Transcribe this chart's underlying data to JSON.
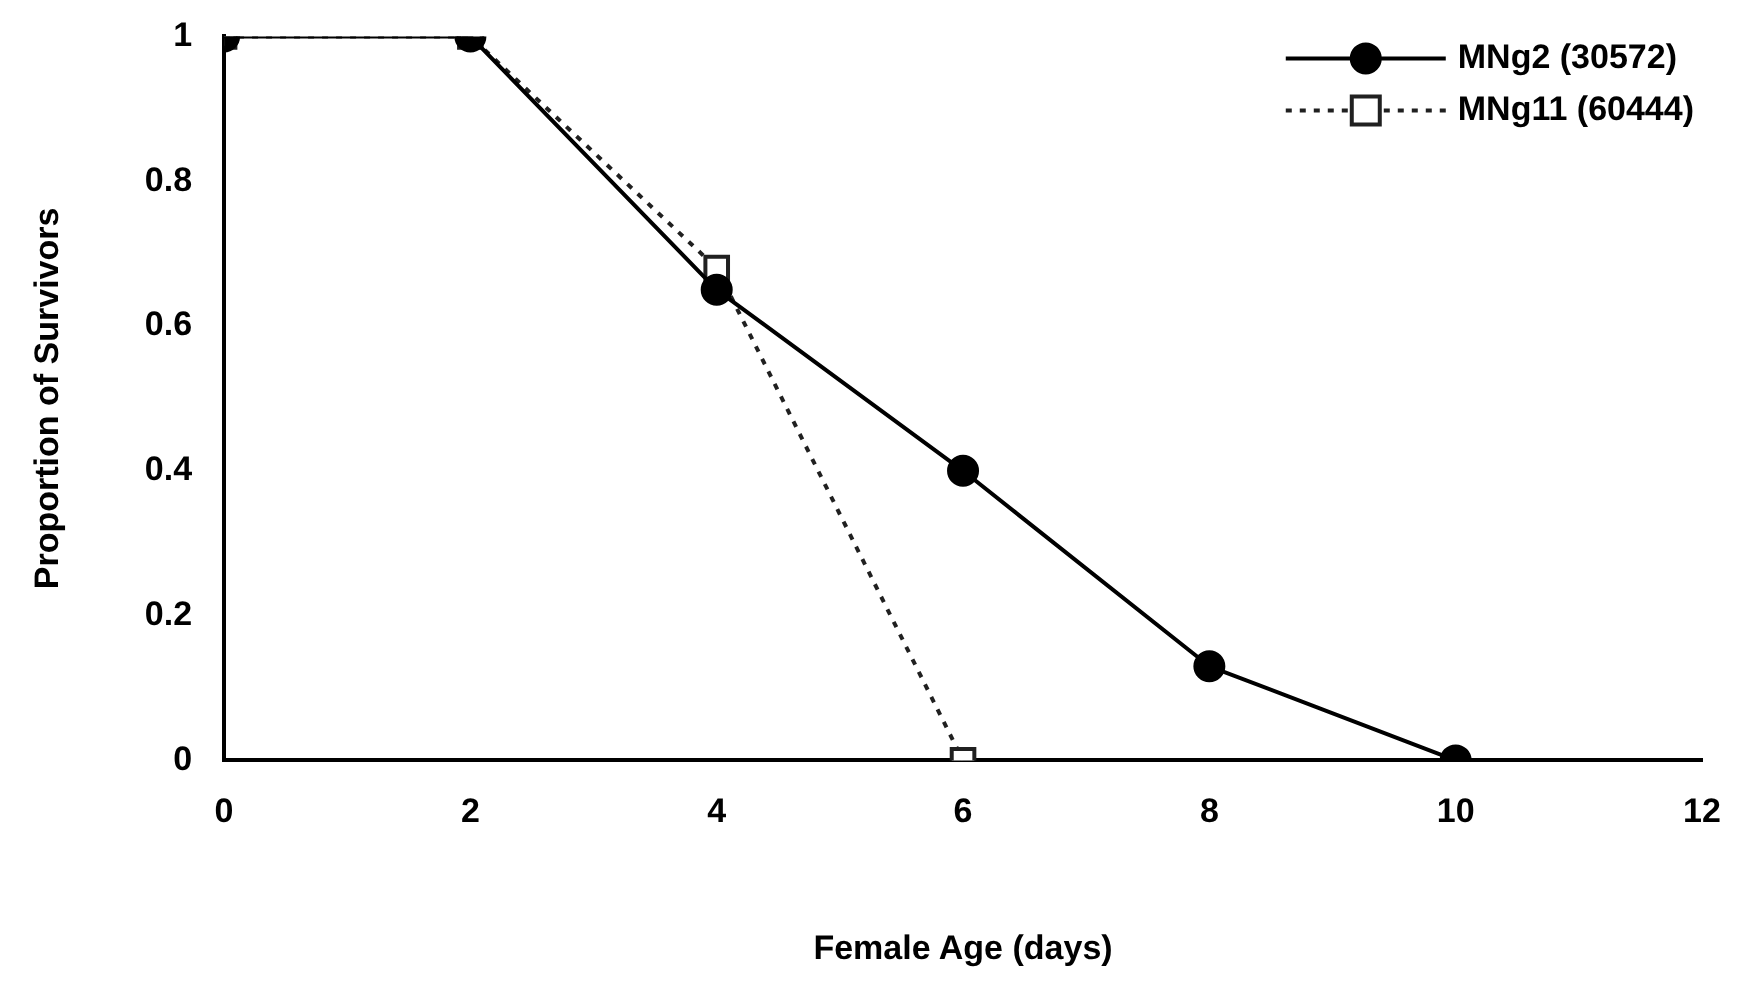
{
  "chart_data": {
    "type": "line",
    "xlabel": "Female Age (days)",
    "ylabel": "Proportion of Survivors",
    "x": [
      0,
      2,
      4,
      6,
      8,
      10
    ],
    "xlim": [
      0,
      12
    ],
    "xticks": [
      0,
      2,
      4,
      6,
      8,
      10,
      12
    ],
    "ylim": [
      0,
      1
    ],
    "yticks": [
      0,
      0.2,
      0.4,
      0.6,
      0.8,
      1
    ],
    "grid": false,
    "legend": "top right",
    "series": [
      {
        "name": "MNg2 (30572)",
        "color": "#000000",
        "marker": "circle",
        "line_style": "solid",
        "values": [
          1,
          1,
          0.65,
          0.4,
          0.13,
          0
        ]
      },
      {
        "name": "MNg11 (60444)",
        "color": "#202020",
        "marker": "square",
        "line_style": "dotted",
        "x": [
          0,
          2,
          4,
          6
        ],
        "values": [
          1,
          1,
          0.68,
          0
        ]
      }
    ]
  }
}
